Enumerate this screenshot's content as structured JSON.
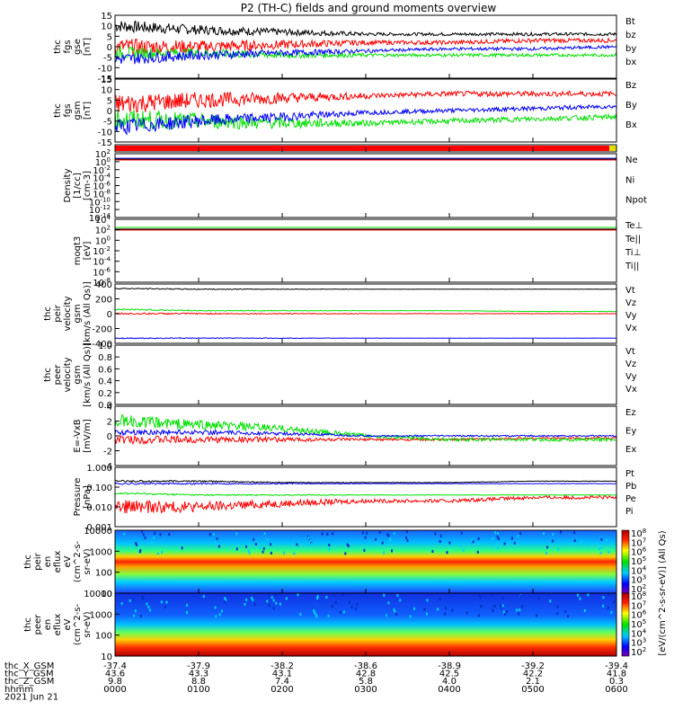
{
  "title": "P2 (TH-C) fields and ground moments overview",
  "colors": {
    "black": "#000000",
    "red": "#ff0000",
    "green": "#00e000",
    "blue": "#0000ff",
    "yellow": "#e0e000"
  },
  "panels": [
    {
      "id": "fgs-gse",
      "ylabel_lines": [
        "thc",
        "fgs",
        "gse",
        "[nT]"
      ],
      "ticks": [
        "15",
        "10",
        "5",
        "0",
        "-5",
        "-10",
        "-15"
      ],
      "ylim": [
        -15,
        15
      ],
      "legend": [
        {
          "t": "Bt",
          "c": "black"
        },
        {
          "t": "bz",
          "c": "red"
        },
        {
          "t": "by",
          "c": "green"
        },
        {
          "t": "bx",
          "c": "blue"
        }
      ]
    },
    {
      "id": "fgs-gsm",
      "ylabel_lines": [
        "thc",
        "fgs",
        "gsm",
        "[nT]"
      ],
      "ticks": [
        "15",
        "10",
        "5",
        "0",
        "-5",
        "-10",
        "-15"
      ],
      "ylim": [
        -15,
        15
      ],
      "legend": [
        {
          "t": "Bz",
          "c": "red"
        },
        {
          "t": "By",
          "c": "green"
        },
        {
          "t": "Bx",
          "c": "blue"
        }
      ]
    },
    {
      "id": "mode-bar",
      "ylabel_lines": [],
      "ticks": [],
      "legend": []
    },
    {
      "id": "density",
      "ylabel_lines": [
        "Density",
        "[1/cc]",
        "[cm-3]"
      ],
      "ticks": [
        "10^2",
        "10^0",
        "10^-2",
        "10^-4",
        "10^-6",
        "10^-8",
        "10^-10",
        "10^-12",
        "10^-14"
      ],
      "legend": [
        {
          "t": "Ne",
          "c": "red"
        },
        {
          "t": "Ni",
          "c": "black"
        },
        {
          "t": "Npot",
          "c": "blue"
        }
      ]
    },
    {
      "id": "temperature",
      "ylabel_lines": [
        "moqt3",
        "[eV]"
      ],
      "ticks": [
        "10^4",
        "10^2",
        "10^0",
        "10^-2",
        "10^-4",
        "10^-6",
        "10^-8"
      ],
      "legend": [
        {
          "t": "Te⊥",
          "c": "red"
        },
        {
          "t": "Te||",
          "c": "black"
        },
        {
          "t": "Ti⊥",
          "c": "green"
        },
        {
          "t": "Ti||",
          "c": "green"
        }
      ]
    },
    {
      "id": "peir-velocity",
      "ylabel_lines": [
        "thc",
        "peir",
        "velocity",
        "gsm",
        "[km/s (All Qs)]"
      ],
      "ticks": [
        "400",
        "200",
        "0",
        "-200",
        "-400"
      ],
      "ylim": [
        -400,
        400
      ],
      "legend": [
        {
          "t": "Vt",
          "c": "black"
        },
        {
          "t": "Vz",
          "c": "red"
        },
        {
          "t": "Vy",
          "c": "green"
        },
        {
          "t": "Vx",
          "c": "blue"
        }
      ]
    },
    {
      "id": "peer-velocity",
      "ylabel_lines": [
        "thc",
        "peer",
        "velocity",
        "gsm",
        "[km/s (All Qs)]"
      ],
      "ticks": [
        "1.0",
        "0.8",
        "0.6",
        "0.4",
        "0.2",
        "0.0"
      ],
      "ylim": [
        0,
        1
      ],
      "legend": [
        {
          "t": "Vt",
          "c": "black"
        },
        {
          "t": "Vz",
          "c": "red"
        },
        {
          "t": "Vy",
          "c": "green"
        },
        {
          "t": "Vx",
          "c": "blue"
        }
      ]
    },
    {
      "id": "efield",
      "ylabel_lines": [
        "E=-VxB",
        "[mV/m]"
      ],
      "ticks": [
        "4",
        "2",
        "0",
        "-2",
        "-4"
      ],
      "ylim": [
        -4,
        4
      ],
      "legend": [
        {
          "t": "Ez",
          "c": "red"
        },
        {
          "t": "Ey",
          "c": "green"
        },
        {
          "t": "Ex",
          "c": "blue"
        }
      ]
    },
    {
      "id": "pressure",
      "ylabel_lines": [
        "Pressure",
        "[nPa]"
      ],
      "ticks": [
        "1.000",
        "0.100",
        "0.010",
        "0.001"
      ],
      "legend": [
        {
          "t": "Pt",
          "c": "black"
        },
        {
          "t": "Pb",
          "c": "red"
        },
        {
          "t": "Pe",
          "c": "green"
        },
        {
          "t": "Pi",
          "c": "blue"
        }
      ]
    },
    {
      "id": "peir-spec",
      "ylabel_lines": [
        "thc",
        "peir",
        "en",
        "eflux",
        "eV",
        "(cm^2-s-",
        "sr-eV)"
      ],
      "ticks": [
        "10000",
        "1000",
        "100",
        "10"
      ],
      "legend": []
    },
    {
      "id": "peer-spec",
      "ylabel_lines": [
        "thc",
        "peer",
        "en",
        "eflux",
        "eV",
        "(cm^2-s-",
        "sr-eV)"
      ],
      "ticks": [
        "10000",
        "1000",
        "100",
        "10"
      ],
      "legend": []
    }
  ],
  "colorbar": {
    "ticks": [
      "10^8",
      "10^7",
      "10^6",
      "10^5",
      "10^4",
      "10^3",
      "10^2"
    ],
    "label": "[eV/(cm^2-s-sr-eV)] (All Qs)"
  },
  "footer": {
    "row_labels": [
      "thc_X_GSM",
      "thc_Y_GSM",
      "thc_Z_GSM",
      "hhmm",
      "2021 Jun 21"
    ],
    "columns": [
      [
        "-37.4",
        "43.6",
        "9.8",
        "0000"
      ],
      [
        "-37.9",
        "43.3",
        "8.8",
        "0100"
      ],
      [
        "-38.2",
        "43.1",
        "7.4",
        "0200"
      ],
      [
        "-38.6",
        "42.8",
        "5.8",
        "0300"
      ],
      [
        "-38.9",
        "42.5",
        "4.0",
        "0400"
      ],
      [
        "-39.2",
        "42.2",
        "2.1",
        "0500"
      ],
      [
        "-39.4",
        "41.8",
        "0.3",
        "0600"
      ]
    ]
  },
  "chart_data": [
    {
      "type": "line",
      "title": "P2 (TH-C) fields and ground moments overview",
      "ylabel": "thc fgs gse [nT]",
      "ylim": [
        -15,
        15
      ],
      "x": [
        "0000",
        "0100",
        "0200",
        "0300",
        "0400",
        "0500",
        "0600"
      ],
      "series": [
        {
          "name": "Bt",
          "values": [
            10,
            8,
            7,
            6,
            6,
            6,
            6
          ]
        },
        {
          "name": "bz",
          "values": [
            0,
            0,
            1,
            2,
            2,
            3,
            3
          ]
        },
        {
          "name": "by",
          "values": [
            -3,
            -3,
            -4,
            -4,
            -4,
            -4,
            -4
          ]
        },
        {
          "name": "bx",
          "values": [
            -6,
            -4,
            -3,
            -2,
            -1,
            -1,
            0
          ]
        }
      ]
    },
    {
      "type": "line",
      "ylabel": "thc fgs gsm [nT]",
      "ylim": [
        -15,
        15
      ],
      "x": [
        "0000",
        "0100",
        "0200",
        "0300",
        "0400",
        "0500",
        "0600"
      ],
      "series": [
        {
          "name": "Bz",
          "values": [
            3,
            5,
            6,
            7,
            8,
            8,
            8
          ]
        },
        {
          "name": "By",
          "values": [
            -4,
            -5,
            -6,
            -6,
            -5,
            -4,
            -3
          ]
        },
        {
          "name": "Bx",
          "values": [
            -8,
            -5,
            -3,
            -1,
            0,
            1,
            2
          ]
        }
      ]
    },
    {
      "type": "line",
      "ylabel": "thc peir velocity gsm [km/s (All Qs)]",
      "ylim": [
        -400,
        400
      ],
      "x": [
        "0000",
        "0100",
        "0200",
        "0300",
        "0400",
        "0500",
        "0600"
      ],
      "series": [
        {
          "name": "Vt",
          "values": [
            340,
            330,
            330,
            330,
            330,
            330,
            330
          ]
        },
        {
          "name": "Vz",
          "values": [
            0,
            0,
            0,
            0,
            0,
            0,
            0
          ]
        },
        {
          "name": "Vy",
          "values": [
            60,
            40,
            40,
            40,
            40,
            30,
            30
          ]
        },
        {
          "name": "Vx",
          "values": [
            -330,
            -330,
            -330,
            -330,
            -330,
            -330,
            -330
          ]
        }
      ]
    },
    {
      "type": "line",
      "ylabel": "E=-VxB [mV/m]",
      "ylim": [
        -4,
        4
      ],
      "x": [
        "0000",
        "0100",
        "0200",
        "0300",
        "0400",
        "0500",
        "0600"
      ],
      "series": [
        {
          "name": "Ez",
          "values": [
            -0.5,
            -0.5,
            -0.5,
            -0.5,
            -0.5,
            -0.3,
            -0.3
          ]
        },
        {
          "name": "Ey",
          "values": [
            2,
            1.5,
            1,
            0,
            -0.5,
            -0.5,
            -0.5
          ]
        },
        {
          "name": "Ex",
          "values": [
            0.5,
            0.5,
            0.3,
            0,
            0,
            0,
            0
          ]
        }
      ]
    },
    {
      "type": "line",
      "ylabel": "Pressure [nPa]",
      "yscale": "log",
      "x": [
        "0000",
        "0100",
        "0200",
        "0300",
        "0400",
        "0500",
        "0600"
      ],
      "series": [
        {
          "name": "Pt",
          "values": [
            0.2,
            0.2,
            0.17,
            0.17,
            0.17,
            0.2,
            0.2
          ]
        },
        {
          "name": "Pb",
          "values": [
            0.01,
            0.01,
            0.015,
            0.02,
            0.02,
            0.03,
            0.03
          ]
        },
        {
          "name": "Pe",
          "values": [
            0.05,
            0.04,
            0.04,
            0.04,
            0.04,
            0.04,
            0.04
          ]
        },
        {
          "name": "Pi",
          "values": [
            0.15,
            0.15,
            0.15,
            0.15,
            0.15,
            0.15,
            0.15
          ]
        }
      ]
    },
    {
      "type": "heatmap",
      "ylabel": "thc peir en eflux eV (cm^2-s- sr-eV)"
    },
    {
      "type": "heatmap",
      "ylabel": "thc peer en eflux eV (cm^2-s- sr-eV)"
    }
  ]
}
